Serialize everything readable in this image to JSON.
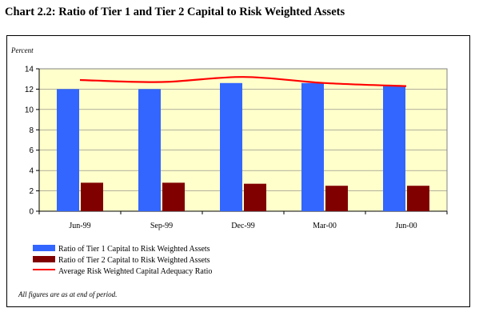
{
  "title": "Chart 2.2: Ratio of Tier 1 and Tier 2 Capital to Risk Weighted Assets",
  "note": "All figures are as at end of period.",
  "colors": {
    "plot_bg": "#ffffcc",
    "tier1": "#3366ff",
    "tier2": "#800000",
    "avg": "#ff0000"
  },
  "chart_data": {
    "type": "bar",
    "ylabel": "Percent",
    "xlabel": "",
    "ylim": [
      0,
      14
    ],
    "yticks": [
      0,
      2,
      4,
      6,
      8,
      10,
      12,
      14
    ],
    "grid": true,
    "legend_position": "bottom",
    "categories": [
      "Jun-99",
      "Sep-99",
      "Dec-99",
      "Mar-00",
      "Jun-00"
    ],
    "series": [
      {
        "name": "Ratio of Tier 1 Capital to Risk Weighted Assets",
        "kind": "bar",
        "values": [
          12.0,
          12.0,
          12.6,
          12.6,
          12.3
        ]
      },
      {
        "name": "Ratio of Tier 2 Capital to Risk Weighted Assets",
        "kind": "bar",
        "values": [
          2.8,
          2.8,
          2.7,
          2.5,
          2.5
        ]
      },
      {
        "name": "Average Risk Weighted Capital Adequacy Ratio",
        "kind": "line",
        "values": [
          12.9,
          12.7,
          13.2,
          12.6,
          12.3
        ]
      }
    ]
  }
}
